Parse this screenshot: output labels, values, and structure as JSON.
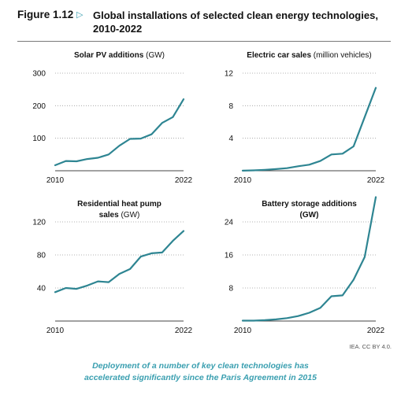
{
  "figure": {
    "label": "Figure 1.12",
    "arrow": "▷",
    "title_line1": "Global installations of selected clean energy technologies,",
    "title_line2": "2010-2022"
  },
  "credit": "IEA. CC BY 4.0.",
  "caption": {
    "line1": "Deployment of a number of key clean technologies has",
    "line2": "accelerated significantly since the Paris Agreement in 2015"
  },
  "colors": {
    "line": "#2e8592",
    "grid": "#9a9a9a",
    "accent": "#3a9fb0"
  },
  "chart_data": [
    {
      "type": "line",
      "title_lines": [
        [
          "Solar PV additions",
          " (GW)"
        ]
      ],
      "x": [
        2010,
        2011,
        2012,
        2013,
        2014,
        2015,
        2016,
        2017,
        2018,
        2019,
        2020,
        2021,
        2022
      ],
      "series": [
        {
          "values": [
            17,
            30,
            29,
            36,
            40,
            50,
            77,
            98,
            99,
            112,
            147,
            165,
            220
          ]
        }
      ],
      "yticks": [
        100,
        200,
        300
      ],
      "ylim": [
        0,
        300
      ],
      "xticks": [
        "2010",
        "2022"
      ],
      "grid": "dotted-horizontal"
    },
    {
      "type": "line",
      "title_lines": [
        [
          "Electric car sales",
          " (million vehicles)"
        ]
      ],
      "x": [
        2010,
        2011,
        2012,
        2013,
        2014,
        2015,
        2016,
        2017,
        2018,
        2019,
        2020,
        2021,
        2022
      ],
      "series": [
        {
          "values": [
            0.01,
            0.05,
            0.12,
            0.2,
            0.32,
            0.55,
            0.75,
            1.2,
            2.0,
            2.1,
            3.0,
            6.6,
            10.2
          ]
        }
      ],
      "yticks": [
        4,
        8,
        12
      ],
      "ylim": [
        0,
        12
      ],
      "xticks": [
        "2010",
        "2022"
      ],
      "grid": "dotted-horizontal"
    },
    {
      "type": "line",
      "title_lines": [
        [
          "Residential heat pump"
        ],
        [
          "sales",
          " (GW)"
        ]
      ],
      "x": [
        2010,
        2011,
        2012,
        2013,
        2014,
        2015,
        2016,
        2017,
        2018,
        2019,
        2020,
        2021,
        2022
      ],
      "series": [
        {
          "values": [
            35,
            40,
            39,
            43,
            48,
            47,
            57,
            63,
            78,
            82,
            83,
            97,
            109
          ]
        }
      ],
      "yticks": [
        40,
        80,
        120
      ],
      "ylim": [
        0,
        120
      ],
      "xticks": [
        "2010",
        "2022"
      ],
      "grid": "dotted-horizontal"
    },
    {
      "type": "line",
      "title_lines": [
        [
          "Battery storage additions"
        ],
        [
          "(GW)"
        ]
      ],
      "x": [
        2010,
        2011,
        2012,
        2013,
        2014,
        2015,
        2016,
        2017,
        2018,
        2019,
        2020,
        2021,
        2022
      ],
      "series": [
        {
          "values": [
            0.1,
            0.1,
            0.2,
            0.4,
            0.7,
            1.2,
            2.0,
            3.2,
            6.0,
            6.2,
            10.0,
            15.5,
            30.0
          ]
        }
      ],
      "yticks": [
        8,
        16,
        24
      ],
      "ylim": [
        0,
        24
      ],
      "xticks": [
        "2010",
        "2022"
      ],
      "grid": "dotted-horizontal"
    }
  ]
}
